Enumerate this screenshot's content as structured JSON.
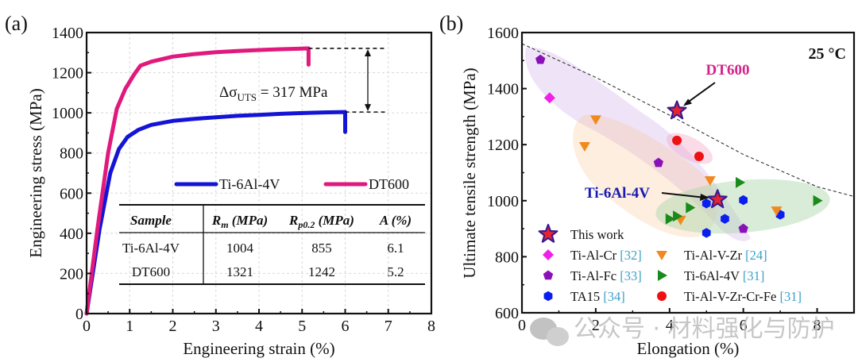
{
  "chart_data": [
    {
      "panel": "(a)",
      "type": "line",
      "title": "",
      "xlabel": "Engineering strain (%)",
      "ylabel": "Engineering stress (MPa)",
      "xlim": [
        0,
        8
      ],
      "ylim": [
        0,
        1400
      ],
      "xticks": [
        "0",
        "1",
        "2",
        "3",
        "4",
        "5",
        "6",
        "7",
        "8"
      ],
      "yticks": [
        "0",
        "200",
        "400",
        "600",
        "800",
        "1000",
        "1200",
        "1400"
      ],
      "grid": true,
      "legend_position": "middle-right",
      "series": [
        {
          "name": "Ti-6Al-4V",
          "color": "#1414d6",
          "x": [
            0,
            0.3,
            0.55,
            0.75,
            0.95,
            1.2,
            1.5,
            2.0,
            2.5,
            3.0,
            3.5,
            4.0,
            4.5,
            5.0,
            5.5,
            6.0,
            6.0
          ],
          "y": [
            0,
            420,
            700,
            820,
            880,
            915,
            940,
            960,
            970,
            978,
            985,
            990,
            995,
            999,
            1002,
            1004,
            905
          ]
        },
        {
          "name": "DT600",
          "color": "#e0197d",
          "x": [
            0,
            0.25,
            0.5,
            0.7,
            0.9,
            1.1,
            1.25,
            1.5,
            2.0,
            2.5,
            3.0,
            3.5,
            4.0,
            4.5,
            5.0,
            5.15,
            5.15
          ],
          "y": [
            0,
            420,
            800,
            1020,
            1120,
            1190,
            1235,
            1255,
            1280,
            1293,
            1302,
            1308,
            1313,
            1317,
            1320,
            1321,
            1240
          ]
        }
      ],
      "annotation": {
        "prefix": "Δσ",
        "subscript": "UTS",
        "suffix": " = 317 MPa",
        "from": 1004,
        "to": 1321
      },
      "table": {
        "headers": [
          "Sample",
          "R",
          "m",
          " (MPa)",
          "R",
          "p0.2",
          " (MPa)",
          "A (%)"
        ],
        "header_cells": [
          {
            "main": "Sample",
            "sub": "",
            "rest": ""
          },
          {
            "main": "R",
            "sub": "m",
            "rest": " (MPa)"
          },
          {
            "main": "R",
            "sub": "p0.2",
            "rest": " (MPa)"
          },
          {
            "main": "A (%)",
            "sub": "",
            "rest": ""
          }
        ],
        "rows": [
          [
            "Ti-6Al-4V",
            "1004",
            "855",
            "6.1"
          ],
          [
            "DT600",
            "1321",
            "1242",
            "5.2"
          ]
        ]
      }
    },
    {
      "panel": "(b)",
      "type": "scatter",
      "title": "",
      "xlabel": "Elongation (%)",
      "ylabel": "Ultimate tensile strength (MPa)",
      "xlim": [
        0,
        9
      ],
      "ylim": [
        600,
        1600
      ],
      "xticks": [
        "0",
        "2",
        "4",
        "6",
        "8"
      ],
      "yticks": [
        "600",
        "800",
        "1000",
        "1200",
        "1400",
        "1600"
      ],
      "grid": false,
      "legend_position": "bottom-left",
      "temperature_label": "25 °C",
      "trend_line": {
        "style": "dashed",
        "points": [
          [
            0,
            1560
          ],
          [
            2,
            1440
          ],
          [
            4,
            1305
          ],
          [
            6,
            1165
          ],
          [
            8,
            1050
          ],
          [
            9,
            1015
          ]
        ]
      },
      "callouts": [
        {
          "text": "DT600",
          "color": "#d4238a",
          "target": [
            4.2,
            1321
          ]
        },
        {
          "text": "Ti-6Al-4V",
          "color": "#1a1ab0",
          "target": [
            5.2,
            1004
          ]
        }
      ],
      "series": [
        {
          "name": "This work",
          "ref": "",
          "marker": "star",
          "color": "#e8232f",
          "edge": "#3b1a8f",
          "points": [
            [
              4.2,
              1321
            ],
            [
              5.3,
              1004
            ]
          ]
        },
        {
          "name": "Ti-Al-Cr",
          "ref": "[32]",
          "marker": "diamond",
          "color": "#f020e8",
          "points": [
            [
              0.75,
              1367
            ]
          ]
        },
        {
          "name": "Ti-Al-Fc",
          "ref": "[33]",
          "marker": "pentagon",
          "color": "#8a10b8",
          "points": [
            [
              0.5,
              1503
            ],
            [
              3.7,
              1135
            ],
            [
              6.0,
              900
            ]
          ]
        },
        {
          "name": "TA15",
          "ref": "[34]",
          "marker": "hexagon",
          "color": "#0a1ef0",
          "points": [
            [
              5.0,
              990
            ],
            [
              6.0,
              1002
            ],
            [
              5.5,
              935
            ],
            [
              5.0,
              885
            ],
            [
              7.0,
              950
            ]
          ]
        },
        {
          "name": "Ti-Al-V-Zr",
          "ref": "[24]",
          "marker": "triangle-down",
          "color": "#f08a1e",
          "points": [
            [
              2.0,
              1290
            ],
            [
              1.7,
              1195
            ],
            [
              5.1,
              1073
            ],
            [
              4.3,
              932
            ],
            [
              6.9,
              965
            ]
          ]
        },
        {
          "name": "Ti-6Al-4V",
          "ref": "[31]",
          "marker": "triangle-right",
          "color": "#1a8a1a",
          "points": [
            [
              5.9,
              1065
            ],
            [
              4.55,
              975
            ],
            [
              4.2,
              945
            ],
            [
              4.0,
              935
            ],
            [
              8.0,
              1000
            ]
          ]
        },
        {
          "name": "Ti-Al-V-Zr-Cr-Fe",
          "ref": "[31]",
          "marker": "circle",
          "color": "#ee1111",
          "points": [
            [
              4.2,
              1215
            ],
            [
              4.8,
              1158
            ]
          ]
        }
      ]
    }
  ],
  "watermark": {
    "text": "公众号 · 材料强化与防护"
  }
}
